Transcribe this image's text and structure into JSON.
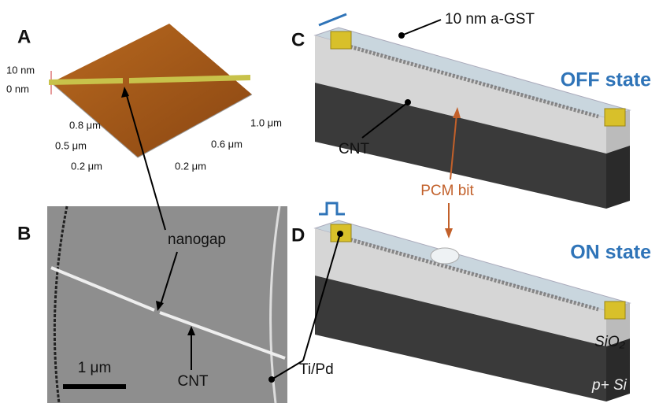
{
  "panels": [
    {
      "label": "A",
      "annotations": [
        "10 nm",
        "0 nm",
        "0.8 μm",
        "0.5 μm",
        "0.2 μm",
        "1.0 μm",
        "0.6 μm",
        "0.2 μm"
      ]
    },
    {
      "label": "B",
      "annotations": [
        "nanogap",
        "CNT",
        "Ti/Pd",
        "1 μm"
      ]
    },
    {
      "label": "C",
      "annotations": [
        "10 nm a-GST",
        "OFF state",
        "CNT",
        "PCM bit"
      ]
    },
    {
      "label": "D",
      "annotations": [
        "ON state",
        "SiO₂",
        "p+ Si"
      ]
    }
  ]
}
